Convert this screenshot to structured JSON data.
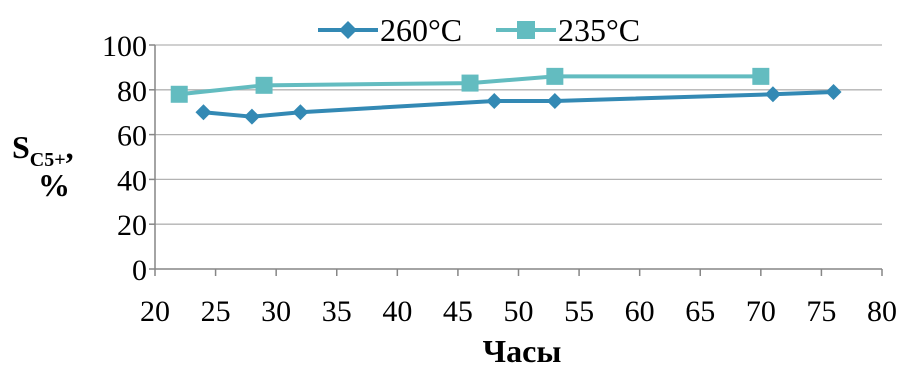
{
  "chart_data": {
    "type": "line",
    "xlabel": "Часы",
    "ylabel": {
      "main": "S",
      "sub": "C5+",
      "suffix": ",",
      "unit": "%"
    },
    "xlim": [
      20,
      80
    ],
    "ylim": [
      0,
      100
    ],
    "xticks": [
      20,
      25,
      30,
      35,
      40,
      45,
      50,
      55,
      60,
      65,
      70,
      75,
      80
    ],
    "yticks": [
      0,
      20,
      40,
      60,
      80,
      100
    ],
    "grid": "horizontal",
    "legend_position": "top",
    "series": [
      {
        "name": "260°C",
        "color": "#3389b4",
        "marker": "diamond",
        "x": [
          24,
          28,
          32,
          48,
          53,
          71,
          76
        ],
        "y": [
          70,
          68,
          70,
          75,
          75,
          78,
          79
        ]
      },
      {
        "name": "235°C",
        "color": "#63bcc0",
        "marker": "square",
        "x": [
          22,
          29,
          46,
          53,
          70
        ],
        "y": [
          78,
          82,
          83,
          86,
          86
        ]
      }
    ]
  }
}
